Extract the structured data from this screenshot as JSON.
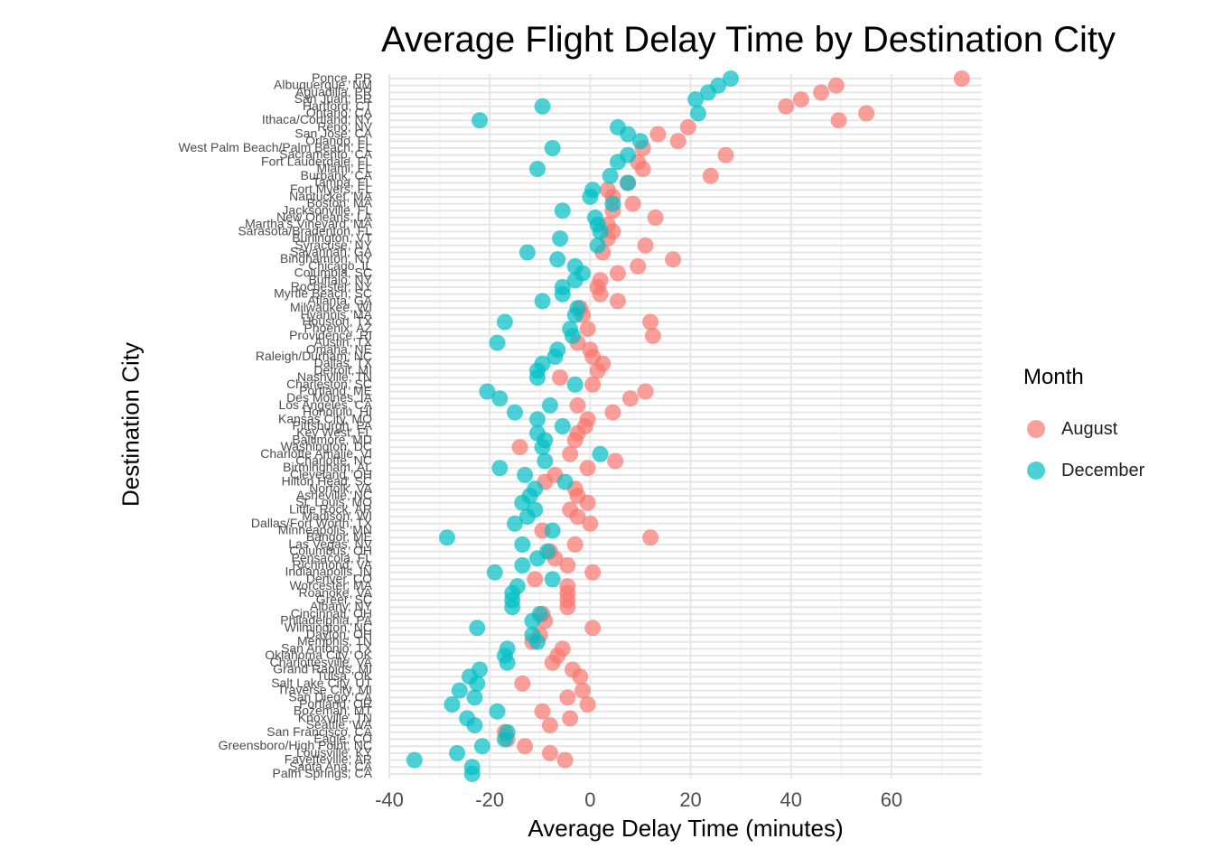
{
  "chart_data": {
    "type": "scatter",
    "title": "Average Flight Delay Time by Destination City",
    "xlabel": "Average Delay Time (minutes)",
    "ylabel": "Destination City",
    "xlim": [
      -40,
      78
    ],
    "xticks": [
      -40,
      -20,
      0,
      20,
      40,
      60
    ],
    "grid": true,
    "legend_position": "right",
    "legend_title": "Month",
    "series": [
      {
        "name": "August",
        "color": "#F8766D"
      },
      {
        "name": "December",
        "color": "#00BFC4"
      }
    ],
    "categories": [
      "Ponce, PR",
      "Albuquerque, NM",
      "Aguadilla, PR",
      "San Juan, PR",
      "Hartford, CT",
      "Ontario, CA",
      "Ithaca/Cortland, NY",
      "Reno, NV",
      "San Jose, CA",
      "Orlando, FL",
      "West Palm Beach/Palm Beach, FL",
      "Sacramento, CA",
      "Fort Lauderdale, FL",
      "Miami, FL",
      "Burbank, CA",
      "Tampa, FL",
      "Fort Myers, FL",
      "Nantucket, MA",
      "Boston, MA",
      "Jacksonville, FL",
      "New Orleans, LA",
      "Martha's Vineyard, MA",
      "Sarasota/Bradenton, FL",
      "Burlington, VT",
      "Syracuse, NY",
      "Savannah, GA",
      "Binghamton, NY",
      "Chicago, IL",
      "Columbia, SC",
      "Buffalo, NY",
      "Rochester, NY",
      "Myrtle Beach, SC",
      "Atlanta, GA",
      "Milwaukee, WI",
      "Hyannis, MA",
      "Houston, TX",
      "Phoenix, AZ",
      "Providence, RI",
      "Austin, TX",
      "Omaha, NE",
      "Raleigh/Durham, NC",
      "Dallas, TX",
      "Detroit, MI",
      "Nashville, TN",
      "Charleston, SC",
      "Portland, ME",
      "Des Moines, IA",
      "Los Angeles, CA",
      "Honolulu, HI",
      "Kansas City, MO",
      "Pittsburgh, PA",
      "Key West, FL",
      "Baltimore, MD",
      "Washington, DC",
      "Charlotte Amalie, VI",
      "Charlotte, NC",
      "Birmingham, AL",
      "Cleveland, OH",
      "Hilton Head, SC",
      "Norfolk, VA",
      "Asheville, NC",
      "St. Louis, MO",
      "Little Rock, AR",
      "Madison, WI",
      "Dallas/Fort Worth, TX",
      "Minneapolis, MN",
      "Bangor, ME",
      "Las Vegas, NV",
      "Columbus, OH",
      "Pensacola, FL",
      "Richmond, VA",
      "Indianapolis, IN",
      "Denver, CO",
      "Worcester, MA",
      "Roanoke, VA",
      "Greer, SC",
      "Albany, NY",
      "Cincinnati, OH",
      "Philadelphia, PA",
      "Wilmington, NC",
      "Dayton, OH",
      "Memphis, TN",
      "San Antonio, TX",
      "Oklahoma City, OK",
      "Charlottesville, VA",
      "Grand Rapids, MI",
      "Tulsa, OK",
      "Salt Lake City, UT",
      "Traverse City, MI",
      "San Diego, CA",
      "Portland, OR",
      "Bozeman, MT",
      "Knoxville, TN",
      "Seattle, WA",
      "San Francisco, CA",
      "Eagle, CO",
      "Greensboro/High Point, NC",
      "Louisville, KY",
      "Fayetteville, AR",
      "Santa Ana, CA",
      "Palm Springs, CA"
    ],
    "august": [
      74,
      49,
      46,
      42,
      39,
      55,
      49.5,
      19.5,
      13.5,
      17.5,
      10.5,
      27,
      9.5,
      10.5,
      24,
      7.5,
      3.5,
      4.5,
      8.5,
      4.5,
      13,
      3.5,
      4.5,
      3.5,
      11,
      2.5,
      16.5,
      9.5,
      5.5,
      2,
      1.5,
      2,
      5.5,
      -2,
      -1.5,
      12,
      -0.5,
      12.5,
      -2.5,
      0,
      0.5,
      2.5,
      1.5,
      -6,
      0.5,
      11,
      8,
      -2.5,
      4.5,
      -0.5,
      -1,
      -2.5,
      -3,
      -14,
      -4,
      5,
      -0.5,
      -7,
      -9,
      -3,
      -2.5,
      -0.5,
      -4,
      -2.5,
      0,
      -9.5,
      12,
      -3,
      -8,
      -7,
      -4.5,
      0.5,
      -11,
      -4.5,
      -4.5,
      -4.5,
      -4.5,
      -9.5,
      -9,
      0.5,
      -10,
      -11.5,
      -5.5,
      -6.5,
      -7.5,
      -3.5,
      -2,
      -13.5,
      -1.5,
      -4.5,
      -0.5,
      -9.5,
      -4,
      -8,
      -17,
      -16.5,
      -13,
      -8,
      -5
    ],
    "december": [
      28,
      25.5,
      23.5,
      21,
      -9.5,
      21.5,
      -22,
      5.5,
      7.5,
      10,
      -7.5,
      7.5,
      5.5,
      -10.5,
      4,
      7.5,
      0.5,
      0,
      4.5,
      -5.5,
      1,
      1.5,
      2,
      -6,
      1.5,
      -12.5,
      -6.5,
      -3,
      -1.5,
      -3,
      -5.5,
      -5.5,
      -9.5,
      -2.5,
      -3,
      -17,
      -4,
      -3.5,
      -18.5,
      -6.5,
      -7,
      -9.5,
      -10.5,
      -10.5,
      -3,
      -20.5,
      -18,
      -8,
      -15,
      -10.5,
      -5.5,
      -10.5,
      -9,
      -9.5,
      2,
      -9,
      -18,
      -13,
      -5,
      -11,
      -12,
      -13.5,
      -11,
      -12.5,
      -15,
      -7.5,
      -28.5,
      -13.5,
      -8.5,
      -10.5,
      -13.5,
      -19,
      -7.5,
      -14.5,
      -15.5,
      -15.5,
      -15.5,
      -10,
      -11.5,
      -22.5,
      -11.5,
      -10.5,
      -16.5,
      -17,
      -16.5,
      -22,
      -24,
      -22.5,
      -26,
      -23,
      -27.5,
      -18.5,
      -24.5,
      -23,
      -16.5,
      -17,
      -21.5,
      -26.5,
      -35,
      -23.5,
      -23.5
    ]
  }
}
